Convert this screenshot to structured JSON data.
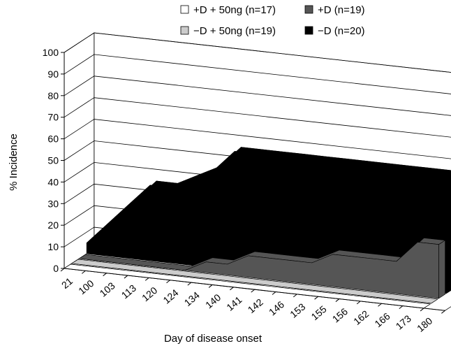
{
  "chart_data": {
    "type": "area",
    "view": "3d-stacked-depth",
    "xlabel": "Day of disease onset",
    "ylabel": "% Incidence",
    "ylim": [
      0,
      100
    ],
    "yticks": [
      0,
      10,
      20,
      30,
      40,
      50,
      60,
      70,
      80,
      90,
      100
    ],
    "grid": "horizontal",
    "legend_position": "top-right",
    "categories": [
      "21",
      "100",
      "103",
      "113",
      "120",
      "124",
      "134",
      "140",
      "141",
      "142",
      "146",
      "153",
      "155",
      "156",
      "162",
      "166",
      "173",
      "180"
    ],
    "series": [
      {
        "name": "+D + 50ng (n=17)",
        "color": "#ffffff",
        "values": [
          0,
          0,
          0,
          0,
          0,
          0,
          0,
          0,
          0,
          0,
          0,
          0,
          0,
          0,
          0,
          0,
          0,
          0
        ]
      },
      {
        "name": "−D + 50ng (n=19)",
        "color": "#cccccc",
        "values": [
          0,
          0,
          0,
          0,
          0,
          0,
          0,
          0,
          0,
          0,
          0,
          0,
          0,
          0,
          0,
          0,
          0,
          0
        ]
      },
      {
        "name": "+D (n=19)",
        "color": "#555555",
        "values": [
          0,
          0,
          0,
          0,
          0,
          0,
          5,
          5,
          10,
          10,
          10,
          10,
          15,
          15,
          15,
          15,
          25,
          25
        ]
      },
      {
        "name": "−D (n=20)",
        "color": "#000000",
        "values": [
          5,
          15,
          25,
          35,
          35,
          40,
          45,
          55,
          55,
          55,
          55,
          55,
          55,
          55,
          55,
          55,
          55,
          55
        ]
      }
    ]
  }
}
